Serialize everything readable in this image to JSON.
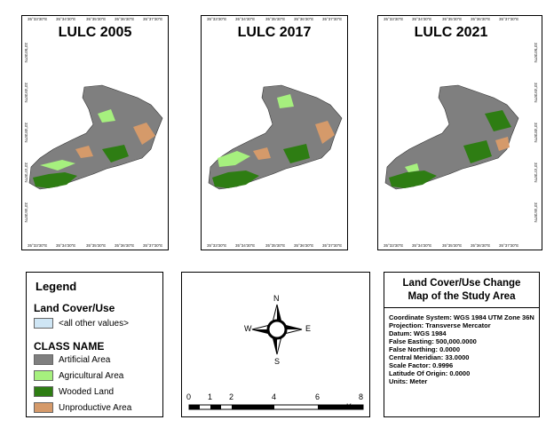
{
  "maps": [
    {
      "title": "LULC 2005",
      "top_ticks": [
        "35°33'30\"E",
        "35°34'30\"E",
        "35°35'30\"E",
        "35°36'30\"E",
        "35°37'30\"E"
      ],
      "bottom_ticks": [
        "35°33'30\"E",
        "35°34'30\"E",
        "35°35'30\"E",
        "35°36'30\"E",
        "35°37'30\"E"
      ],
      "left_ticks": [
        "33°50'30\"N",
        "33°49'30\"N",
        "33°48'30\"N",
        "33°47'30\"N",
        "33°46'30\"N"
      ]
    },
    {
      "title": "LULC 2017",
      "top_ticks": [
        "35°33'30\"E",
        "35°34'30\"E",
        "35°35'30\"E",
        "35°36'30\"E",
        "35°37'30\"E"
      ],
      "bottom_ticks": [
        "35°33'30\"E",
        "35°34'30\"E",
        "35°35'30\"E",
        "35°36'30\"E",
        "35°37'30\"E"
      ]
    },
    {
      "title": "LULC 2021",
      "top_ticks": [
        "35°33'30\"E",
        "35°34'30\"E",
        "35°35'30\"E",
        "35°36'30\"E",
        "35°37'30\"E"
      ],
      "bottom_ticks": [
        "35°33'30\"E",
        "35°34'30\"E",
        "35°35'30\"E",
        "35°36'30\"E",
        "35°37'30\"E"
      ],
      "right_ticks": [
        "33°50'30\"N",
        "33°49'30\"N",
        "33°48'30\"N",
        "33°47'30\"N",
        "33°46'30\"N"
      ]
    }
  ],
  "legend": {
    "title": "Legend",
    "subtitle": "Land Cover/Use",
    "other_values": "<all other values>",
    "class_header": "CLASS NAME",
    "classes": [
      {
        "label": "Artificial Area",
        "color": "#7f7f7f"
      },
      {
        "label": "Agricultural Area",
        "color": "#a6f07e"
      },
      {
        "label": "Wooded Land",
        "color": "#2e7d13"
      },
      {
        "label": "Unproductive Area",
        "color": "#d59a6a"
      }
    ],
    "other_color": "#cfe6f5"
  },
  "north_arrow": {
    "n": "N",
    "s": "S",
    "e": "E",
    "w": "W"
  },
  "scale_bar": {
    "labels": [
      "0",
      "1",
      "2",
      "4",
      "6",
      "8"
    ],
    "unit": "Km"
  },
  "info": {
    "title": "Land Cover/Use Change Map of the Study Area",
    "lines": [
      "Coordinate System: WGS 1984 UTM Zone 36N",
      "Projection: Transverse Mercator",
      "Datum: WGS 1984",
      "False Easting: 500,000.0000",
      "False Northing: 0.0000",
      "Central Meridian: 33.0000",
      "Scale Factor: 0.9996",
      "Latitude Of Origin: 0.0000",
      "Units: Meter"
    ]
  }
}
